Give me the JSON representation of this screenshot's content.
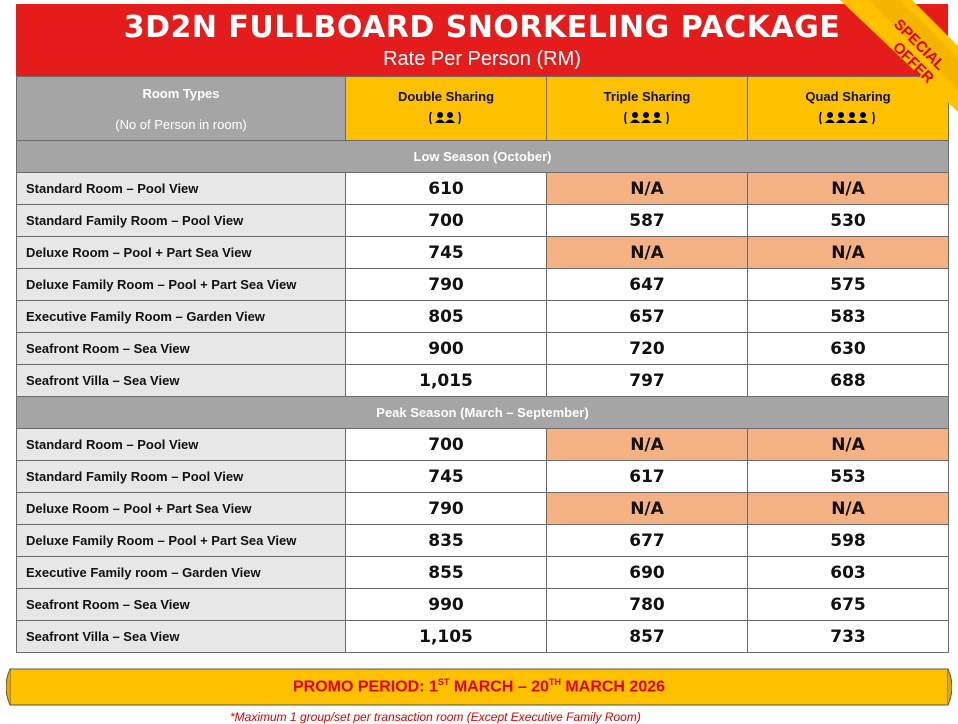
{
  "title": "3D2N FULLBOARD SNORKELING PACKAGE",
  "subtitle": "Rate Per Person (RM)",
  "ribbon": {
    "line1": "SPECIAL",
    "line2": "OFFER"
  },
  "header": {
    "room_types": "Room Types",
    "room_types_sub": "(No of Person in room)",
    "double": "Double Sharing",
    "triple": "Triple Sharing",
    "quad": "Quad Sharing"
  },
  "low_season": {
    "label": "Low Season (October)",
    "rows": [
      {
        "room": "Standard Room – Pool View",
        "double": "610",
        "triple": "N/A",
        "quad": "N/A"
      },
      {
        "room": "Standard Family Room – Pool View",
        "double": "700",
        "triple": "587",
        "quad": "530"
      },
      {
        "room": "Deluxe Room – Pool + Part Sea View",
        "double": "745",
        "triple": "N/A",
        "quad": "N/A"
      },
      {
        "room": "Deluxe Family Room – Pool + Part Sea View",
        "double": "790",
        "triple": "647",
        "quad": "575"
      },
      {
        "room": "Executive Family Room – Garden View",
        "double": "805",
        "triple": "657",
        "quad": "583"
      },
      {
        "room": "Seafront Room – Sea View",
        "double": "900",
        "triple": "720",
        "quad": "630"
      },
      {
        "room": "Seafront Villa – Sea View",
        "double": "1,015",
        "triple": "797",
        "quad": "688"
      }
    ]
  },
  "peak_season": {
    "label": "Peak Season (March – September)",
    "rows": [
      {
        "room": "Standard Room – Pool View",
        "double": "700",
        "triple": "N/A",
        "quad": "N/A"
      },
      {
        "room": "Standard Family Room – Pool View",
        "double": "745",
        "triple": "617",
        "quad": "553"
      },
      {
        "room": "Deluxe Room – Pool + Part Sea View",
        "double": "790",
        "triple": "N/A",
        "quad": "N/A"
      },
      {
        "room": "Deluxe Family Room – Pool + Part Sea View",
        "double": "835",
        "triple": "677",
        "quad": "598"
      },
      {
        "room": "Executive Family room – Garden View",
        "double": "855",
        "triple": "690",
        "quad": "603"
      },
      {
        "room": "Seafront Room – Sea View",
        "double": "990",
        "triple": "780",
        "quad": "675"
      },
      {
        "room": "Seafront Villa – Sea View",
        "double": "1,105",
        "triple": "857",
        "quad": "733"
      }
    ]
  },
  "promo": {
    "prefix": "PROMO PERIOD: 1",
    "sup1": "ST",
    "mid": " MARCH – 20",
    "sup2": "TH",
    "suffix": " MARCH 2026"
  },
  "footnote": "*Maximum 1 group/set per transaction room (Except Executive Family Room)",
  "colors": {
    "red": "#e41c1c",
    "yellow": "#ffc000",
    "gray": "#a5a5a5",
    "na": "#f4b183"
  }
}
